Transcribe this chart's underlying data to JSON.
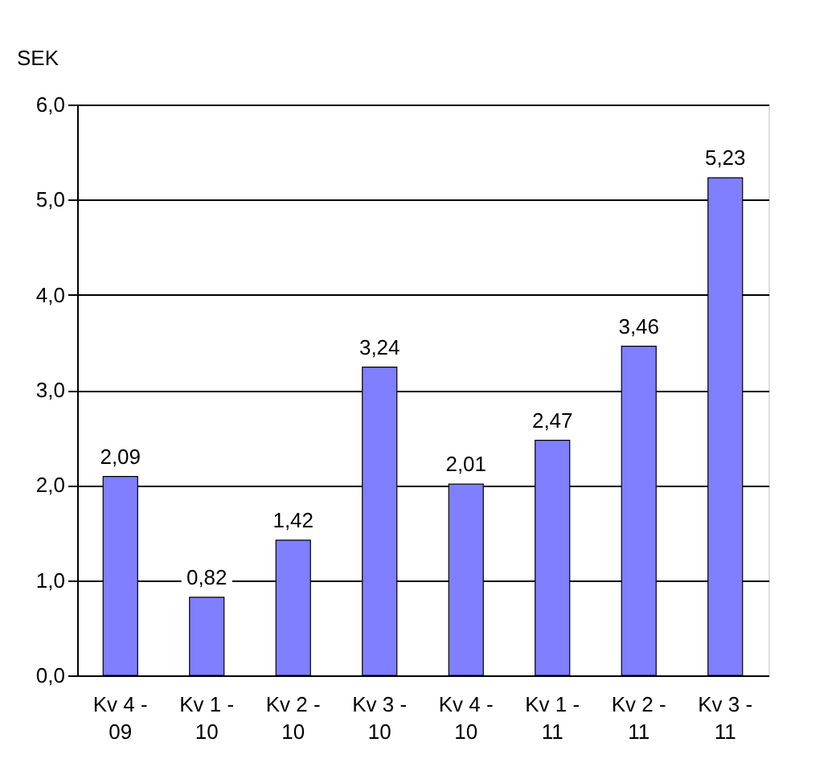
{
  "chart_data": {
    "type": "bar",
    "ylabel": "SEK",
    "categories": [
      "Kv 4 - 09",
      "Kv 1 - 10",
      "Kv 2 - 10",
      "Kv 3 - 10",
      "Kv 4 - 10",
      "Kv 1 - 11",
      "Kv 2 - 11",
      "Kv 3 - 11"
    ],
    "values": [
      2.09,
      0.82,
      1.42,
      3.24,
      2.01,
      2.47,
      3.46,
      5.23
    ],
    "value_labels": [
      "2,09",
      "0,82",
      "1,42",
      "3,24",
      "2,01",
      "2,47",
      "3,46",
      "5,23"
    ],
    "color": "#7f7fff",
    "ylim": [
      0,
      6
    ],
    "yticks": [
      {
        "value": 0,
        "label": "0,0"
      },
      {
        "value": 1,
        "label": "1,0"
      },
      {
        "value": 2,
        "label": "2,0"
      },
      {
        "value": 3,
        "label": "3,0"
      },
      {
        "value": 4,
        "label": "4,0"
      },
      {
        "value": 5,
        "label": "5,0"
      },
      {
        "value": 6,
        "label": "6,0"
      }
    ],
    "grid": "y"
  }
}
